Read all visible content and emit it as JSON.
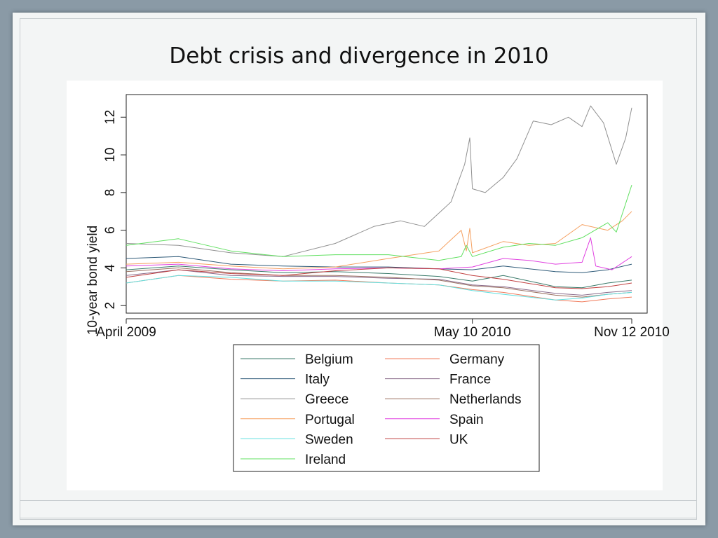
{
  "slide": {
    "title": "Debt crisis and divergence in 2010"
  },
  "chart_data": {
    "type": "line",
    "title": "",
    "xlabel": "",
    "ylabel": "10-year bond yield",
    "x_ticks": [
      "April 2009",
      "May 10 2010",
      "Nov 12 2010"
    ],
    "x_range": [
      "2009-04-01",
      "2010-11-30"
    ],
    "ylim": [
      1.6,
      13.2
    ],
    "y_ticks": [
      2,
      4,
      6,
      8,
      10,
      12
    ],
    "grid": false,
    "legend_position": "bottom",
    "series": [
      {
        "name": "Belgium",
        "color": "#3a7a6a",
        "points": [
          [
            "2009-04-01",
            3.9
          ],
          [
            "2009-06-01",
            4.1
          ],
          [
            "2009-08-01",
            3.9
          ],
          [
            "2009-10-01",
            3.75
          ],
          [
            "2009-12-01",
            3.8
          ],
          [
            "2010-02-01",
            3.7
          ],
          [
            "2010-04-01",
            3.55
          ],
          [
            "2010-05-10",
            3.3
          ],
          [
            "2010-06-15",
            3.6
          ],
          [
            "2010-08-15",
            3.0
          ],
          [
            "2010-09-15",
            2.95
          ],
          [
            "2010-10-15",
            3.2
          ],
          [
            "2010-11-12",
            3.35
          ]
        ]
      },
      {
        "name": "Germany",
        "color": "#f07a5a",
        "points": [
          [
            "2009-04-01",
            3.2
          ],
          [
            "2009-06-01",
            3.6
          ],
          [
            "2009-08-01",
            3.4
          ],
          [
            "2009-10-01",
            3.3
          ],
          [
            "2009-12-01",
            3.35
          ],
          [
            "2010-02-01",
            3.2
          ],
          [
            "2010-04-01",
            3.1
          ],
          [
            "2010-05-10",
            2.85
          ],
          [
            "2010-06-15",
            2.7
          ],
          [
            "2010-08-15",
            2.3
          ],
          [
            "2010-09-15",
            2.2
          ],
          [
            "2010-10-15",
            2.35
          ],
          [
            "2010-11-12",
            2.45
          ]
        ]
      },
      {
        "name": "Italy",
        "color": "#2e5a78",
        "points": [
          [
            "2009-04-01",
            4.5
          ],
          [
            "2009-06-01",
            4.6
          ],
          [
            "2009-08-01",
            4.2
          ],
          [
            "2009-10-01",
            4.1
          ],
          [
            "2009-12-01",
            4.05
          ],
          [
            "2010-02-01",
            4.05
          ],
          [
            "2010-04-01",
            3.95
          ],
          [
            "2010-05-10",
            3.9
          ],
          [
            "2010-06-15",
            4.1
          ],
          [
            "2010-08-15",
            3.8
          ],
          [
            "2010-09-15",
            3.75
          ],
          [
            "2010-10-15",
            3.9
          ],
          [
            "2010-11-12",
            4.2
          ]
        ]
      },
      {
        "name": "France",
        "color": "#8a6a8a",
        "points": [
          [
            "2009-04-01",
            3.6
          ],
          [
            "2009-06-01",
            3.9
          ],
          [
            "2009-08-01",
            3.6
          ],
          [
            "2009-10-01",
            3.55
          ],
          [
            "2009-12-01",
            3.55
          ],
          [
            "2010-02-01",
            3.45
          ],
          [
            "2010-04-01",
            3.4
          ],
          [
            "2010-05-10",
            3.1
          ],
          [
            "2010-06-15",
            3.0
          ],
          [
            "2010-08-15",
            2.65
          ],
          [
            "2010-09-15",
            2.55
          ],
          [
            "2010-10-15",
            2.7
          ],
          [
            "2010-11-12",
            2.8
          ]
        ]
      },
      {
        "name": "Greece",
        "color": "#909090",
        "points": [
          [
            "2009-04-01",
            5.3
          ],
          [
            "2009-06-01",
            5.2
          ],
          [
            "2009-08-01",
            4.8
          ],
          [
            "2009-10-01",
            4.6
          ],
          [
            "2009-12-01",
            5.3
          ],
          [
            "2010-01-15",
            6.2
          ],
          [
            "2010-02-15",
            6.5
          ],
          [
            "2010-03-15",
            6.2
          ],
          [
            "2010-04-15",
            7.5
          ],
          [
            "2010-05-01",
            9.5
          ],
          [
            "2010-05-07",
            10.9
          ],
          [
            "2010-05-10",
            8.2
          ],
          [
            "2010-05-25",
            8.0
          ],
          [
            "2010-06-15",
            8.8
          ],
          [
            "2010-07-01",
            9.8
          ],
          [
            "2010-07-20",
            11.8
          ],
          [
            "2010-08-10",
            11.6
          ],
          [
            "2010-08-30",
            12.0
          ],
          [
            "2010-09-15",
            11.5
          ],
          [
            "2010-09-25",
            12.6
          ],
          [
            "2010-10-10",
            11.7
          ],
          [
            "2010-10-25",
            9.5
          ],
          [
            "2010-11-05",
            10.9
          ],
          [
            "2010-11-12",
            12.5
          ]
        ]
      },
      {
        "name": "Netherlands",
        "color": "#9a7060",
        "points": [
          [
            "2009-04-01",
            3.8
          ],
          [
            "2009-06-01",
            4.0
          ],
          [
            "2009-08-01",
            3.75
          ],
          [
            "2009-10-01",
            3.6
          ],
          [
            "2009-12-01",
            3.6
          ],
          [
            "2010-02-01",
            3.5
          ],
          [
            "2010-04-01",
            3.35
          ],
          [
            "2010-05-10",
            3.05
          ],
          [
            "2010-06-15",
            2.95
          ],
          [
            "2010-08-15",
            2.55
          ],
          [
            "2010-09-15",
            2.45
          ],
          [
            "2010-10-15",
            2.6
          ],
          [
            "2010-11-12",
            2.7
          ]
        ]
      },
      {
        "name": "Portugal",
        "color": "#f5a060",
        "points": [
          [
            "2009-04-01",
            4.2
          ],
          [
            "2009-06-01",
            4.3
          ],
          [
            "2009-08-01",
            4.1
          ],
          [
            "2009-10-01",
            3.95
          ],
          [
            "2009-12-01",
            4.05
          ],
          [
            "2010-02-01",
            4.5
          ],
          [
            "2010-04-01",
            4.9
          ],
          [
            "2010-04-27",
            6.0
          ],
          [
            "2010-05-03",
            4.9
          ],
          [
            "2010-05-07",
            6.1
          ],
          [
            "2010-05-10",
            4.8
          ],
          [
            "2010-06-15",
            5.4
          ],
          [
            "2010-07-15",
            5.2
          ],
          [
            "2010-08-15",
            5.3
          ],
          [
            "2010-09-15",
            6.3
          ],
          [
            "2010-10-15",
            6.0
          ],
          [
            "2010-11-01",
            6.5
          ],
          [
            "2010-11-12",
            7.0
          ]
        ]
      },
      {
        "name": "Spain",
        "color": "#e040e0",
        "points": [
          [
            "2009-04-01",
            4.1
          ],
          [
            "2009-06-01",
            4.2
          ],
          [
            "2009-08-01",
            3.95
          ],
          [
            "2009-10-01",
            3.85
          ],
          [
            "2009-12-01",
            3.95
          ],
          [
            "2010-02-01",
            4.0
          ],
          [
            "2010-04-01",
            3.95
          ],
          [
            "2010-05-10",
            4.05
          ],
          [
            "2010-06-15",
            4.5
          ],
          [
            "2010-07-15",
            4.4
          ],
          [
            "2010-08-15",
            4.2
          ],
          [
            "2010-09-15",
            4.3
          ],
          [
            "2010-09-25",
            5.6
          ],
          [
            "2010-10-01",
            4.1
          ],
          [
            "2010-10-20",
            3.9
          ],
          [
            "2010-11-12",
            4.6
          ]
        ]
      },
      {
        "name": "Sweden",
        "color": "#60e0e0",
        "points": [
          [
            "2009-04-01",
            3.2
          ],
          [
            "2009-06-01",
            3.6
          ],
          [
            "2009-08-01",
            3.5
          ],
          [
            "2009-10-01",
            3.3
          ],
          [
            "2009-12-01",
            3.3
          ],
          [
            "2010-02-01",
            3.2
          ],
          [
            "2010-04-01",
            3.1
          ],
          [
            "2010-05-10",
            2.8
          ],
          [
            "2010-06-15",
            2.6
          ],
          [
            "2010-08-15",
            2.3
          ],
          [
            "2010-09-15",
            2.4
          ],
          [
            "2010-10-15",
            2.6
          ],
          [
            "2010-11-12",
            2.7
          ]
        ]
      },
      {
        "name": "UK",
        "color": "#c04040",
        "points": [
          [
            "2009-04-01",
            3.5
          ],
          [
            "2009-06-01",
            3.9
          ],
          [
            "2009-08-01",
            3.7
          ],
          [
            "2009-10-01",
            3.6
          ],
          [
            "2009-12-01",
            3.85
          ],
          [
            "2010-02-01",
            4.0
          ],
          [
            "2010-04-01",
            3.95
          ],
          [
            "2010-05-10",
            3.6
          ],
          [
            "2010-06-15",
            3.4
          ],
          [
            "2010-08-15",
            2.95
          ],
          [
            "2010-09-15",
            2.9
          ],
          [
            "2010-10-15",
            3.0
          ],
          [
            "2010-11-12",
            3.2
          ]
        ]
      },
      {
        "name": "Ireland",
        "color": "#60e060",
        "points": [
          [
            "2009-04-01",
            5.2
          ],
          [
            "2009-06-01",
            5.55
          ],
          [
            "2009-08-01",
            4.9
          ],
          [
            "2009-10-01",
            4.6
          ],
          [
            "2009-12-01",
            4.7
          ],
          [
            "2010-02-01",
            4.7
          ],
          [
            "2010-04-01",
            4.4
          ],
          [
            "2010-04-27",
            4.6
          ],
          [
            "2010-05-03",
            5.2
          ],
          [
            "2010-05-10",
            4.6
          ],
          [
            "2010-06-15",
            5.1
          ],
          [
            "2010-07-15",
            5.3
          ],
          [
            "2010-08-15",
            5.2
          ],
          [
            "2010-09-15",
            5.6
          ],
          [
            "2010-10-15",
            6.4
          ],
          [
            "2010-10-25",
            5.9
          ],
          [
            "2010-11-12",
            8.4
          ]
        ]
      }
    ]
  }
}
